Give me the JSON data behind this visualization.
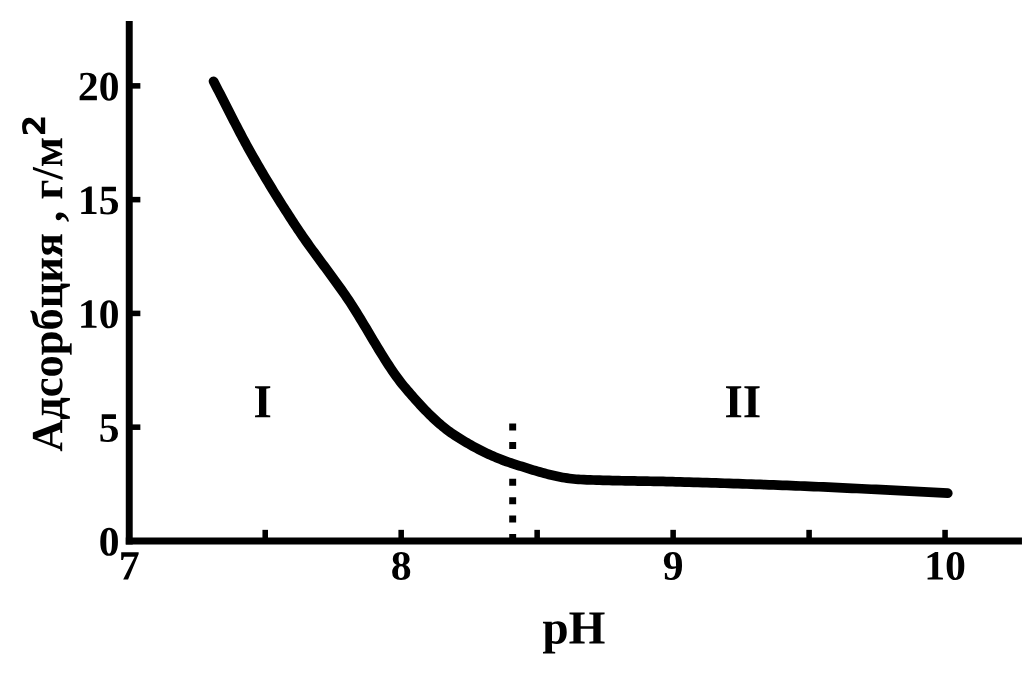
{
  "chart_data": {
    "type": "line",
    "xlabel": "pH",
    "ylabel": "Адсорбция , г/м$^{2}$",
    "series": [
      {
        "color": "#000000",
        "x": [
          7.31,
          7.45,
          7.62,
          7.8,
          8.01,
          8.19,
          8.41,
          8.66,
          9.01,
          9.5,
          10.01
        ],
        "values": [
          20.2,
          17.0,
          13.7,
          10.7,
          6.8,
          4.7,
          3.4,
          2.7,
          2.6,
          2.4,
          2.1
        ],
        "line_style": "solid"
      },
      {
        "color": "#000000",
        "x": [
          8.41,
          8.41
        ],
        "values": [
          0,
          5.2
        ],
        "line_style": "dotted"
      }
    ],
    "annotations": [
      "I",
      "II"
    ],
    "xlim": [
      7,
      10.27
    ],
    "ylim": [
      0,
      22.7
    ],
    "xticks": [
      7,
      {
        "value": 7.5,
        "label": null
      },
      8,
      {
        "value": 8.5,
        "label": null
      },
      9,
      {
        "value": 9.5,
        "label": null
      },
      10
    ],
    "yticks": [
      0,
      5,
      10,
      15,
      20
    ],
    "grid": false,
    "legend": false,
    "marker": "none"
  }
}
